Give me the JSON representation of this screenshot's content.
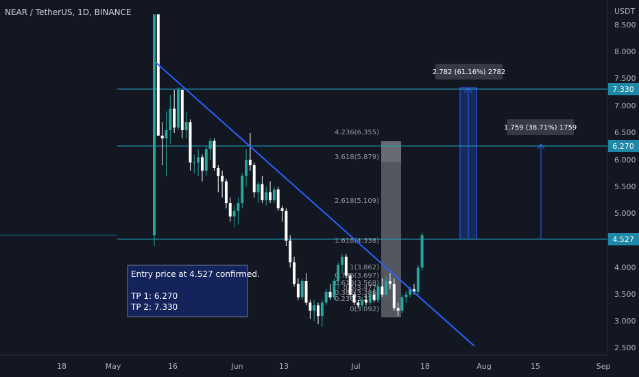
{
  "header": {
    "symbol_title": "NEAR / TetherUS, 1D, BINANCE"
  },
  "price_axis": {
    "unit_label": "USDT",
    "ticks": [
      "8.500",
      "8.000",
      "7.500",
      "7.000",
      "6.500",
      "6.000",
      "5.500",
      "5.000",
      "4.500",
      "4.000",
      "3.500",
      "3.000",
      "2.500"
    ]
  },
  "time_axis": {
    "ticks": [
      "18",
      "May",
      "16",
      "Jun",
      "13",
      "Jul",
      "18",
      "Aug",
      "15",
      "Sep"
    ]
  },
  "annotation": {
    "line1": "Entry price at 4.527 confirmed.",
    "line2": "TP 1: 6.270",
    "line3": "TP 2: 7.330"
  },
  "measure_labels": {
    "tp2": "2.782 (61.16%) 2782",
    "tp1": "1.759 (38.71%) 1759"
  },
  "level_badges": {
    "l7330": "7.330",
    "l6270": "6.270",
    "l4527": "4.527"
  },
  "fib_labels": {
    "f4236": "4.236(6.355)",
    "f3618": "3.618(5.879)",
    "f2618": "2.618(5.109)",
    "f1618": "1.618(4.338)",
    "f1": "1(3.862)",
    "f0786": "0.786(3.697)",
    "f0618": "0.618(3.568)",
    "f05": "0.5(3.477)",
    "f0382": "0.382(3.386)",
    "f0236": "0.236(3.274)",
    "f0": "0(3.092)"
  },
  "colors": {
    "background": "#131722",
    "up": "#26a69a",
    "down": "#ffffff",
    "level_line": "#22a6c4",
    "trendline": "#2962ff",
    "badge": "#1e88a8",
    "annotation_bg": "#14235a",
    "annotation_border": "#6b7a9a"
  },
  "chart_data": {
    "type": "candlestick",
    "title": "NEAR / TetherUS, 1D, BINANCE",
    "ylabel": "USDT",
    "ylim": [
      2.5,
      8.7
    ],
    "horizontal_levels": [
      7.33,
      6.27,
      4.527
    ],
    "candles": [
      {
        "o": 4.6,
        "h": 8.7,
        "l": 4.4,
        "c": 8.7
      },
      {
        "o": 8.7,
        "h": 8.7,
        "l": 6.45,
        "c": 6.45
      },
      {
        "o": 6.45,
        "h": 6.7,
        "l": 5.9,
        "c": 6.4
      },
      {
        "o": 6.4,
        "h": 6.9,
        "l": 5.7,
        "c": 6.55
      },
      {
        "o": 6.55,
        "h": 7.2,
        "l": 6.3,
        "c": 6.95
      },
      {
        "o": 6.95,
        "h": 7.3,
        "l": 6.5,
        "c": 6.6
      },
      {
        "o": 6.6,
        "h": 7.35,
        "l": 6.55,
        "c": 7.3
      },
      {
        "o": 7.3,
        "h": 7.3,
        "l": 6.4,
        "c": 6.55
      },
      {
        "o": 6.55,
        "h": 6.9,
        "l": 6.4,
        "c": 6.7
      },
      {
        "o": 6.7,
        "h": 6.75,
        "l": 5.8,
        "c": 5.95
      },
      {
        "o": 5.95,
        "h": 6.1,
        "l": 5.75,
        "c": 5.95
      },
      {
        "o": 5.95,
        "h": 6.2,
        "l": 5.7,
        "c": 6.05
      },
      {
        "o": 6.05,
        "h": 6.1,
        "l": 5.6,
        "c": 5.8
      },
      {
        "o": 5.8,
        "h": 6.25,
        "l": 5.7,
        "c": 6.2
      },
      {
        "o": 6.2,
        "h": 6.4,
        "l": 6.0,
        "c": 6.35
      },
      {
        "o": 6.35,
        "h": 6.4,
        "l": 5.8,
        "c": 5.85
      },
      {
        "o": 5.85,
        "h": 5.9,
        "l": 5.4,
        "c": 5.7
      },
      {
        "o": 5.7,
        "h": 5.8,
        "l": 5.3,
        "c": 5.6
      },
      {
        "o": 5.6,
        "h": 5.65,
        "l": 5.1,
        "c": 5.2
      },
      {
        "o": 5.2,
        "h": 5.3,
        "l": 4.85,
        "c": 4.95
      },
      {
        "o": 4.95,
        "h": 5.15,
        "l": 4.75,
        "c": 5.05
      },
      {
        "o": 5.05,
        "h": 5.3,
        "l": 4.8,
        "c": 5.2
      },
      {
        "o": 5.2,
        "h": 5.75,
        "l": 5.1,
        "c": 5.7
      },
      {
        "o": 5.7,
        "h": 6.2,
        "l": 5.5,
        "c": 6.0
      },
      {
        "o": 6.0,
        "h": 6.5,
        "l": 5.8,
        "c": 5.9
      },
      {
        "o": 5.9,
        "h": 5.95,
        "l": 5.3,
        "c": 5.4
      },
      {
        "o": 5.4,
        "h": 5.6,
        "l": 5.2,
        "c": 5.55
      },
      {
        "o": 5.55,
        "h": 5.7,
        "l": 5.2,
        "c": 5.25
      },
      {
        "o": 5.25,
        "h": 5.5,
        "l": 5.15,
        "c": 5.4
      },
      {
        "o": 5.4,
        "h": 5.6,
        "l": 5.2,
        "c": 5.25
      },
      {
        "o": 5.25,
        "h": 5.5,
        "l": 5.2,
        "c": 5.45
      },
      {
        "o": 5.45,
        "h": 5.5,
        "l": 5.05,
        "c": 5.1
      },
      {
        "o": 5.1,
        "h": 5.15,
        "l": 4.85,
        "c": 5.05
      },
      {
        "o": 5.05,
        "h": 5.1,
        "l": 4.4,
        "c": 4.5
      },
      {
        "o": 4.5,
        "h": 4.6,
        "l": 4.0,
        "c": 4.1
      },
      {
        "o": 4.1,
        "h": 4.2,
        "l": 3.65,
        "c": 3.7
      },
      {
        "o": 3.7,
        "h": 3.8,
        "l": 3.4,
        "c": 3.45
      },
      {
        "o": 3.45,
        "h": 3.8,
        "l": 3.4,
        "c": 3.75
      },
      {
        "o": 3.75,
        "h": 3.9,
        "l": 3.3,
        "c": 3.35
      },
      {
        "o": 3.35,
        "h": 3.4,
        "l": 3.05,
        "c": 3.2
      },
      {
        "o": 3.2,
        "h": 3.4,
        "l": 3.0,
        "c": 3.3
      },
      {
        "o": 3.3,
        "h": 3.35,
        "l": 2.95,
        "c": 3.1
      },
      {
        "o": 3.1,
        "h": 3.4,
        "l": 2.9,
        "c": 3.35
      },
      {
        "o": 3.35,
        "h": 3.6,
        "l": 3.3,
        "c": 3.55
      },
      {
        "o": 3.55,
        "h": 3.7,
        "l": 3.4,
        "c": 3.45
      },
      {
        "o": 3.45,
        "h": 3.8,
        "l": 3.4,
        "c": 3.75
      },
      {
        "o": 3.75,
        "h": 4.1,
        "l": 3.6,
        "c": 4.05
      },
      {
        "o": 4.05,
        "h": 4.25,
        "l": 3.9,
        "c": 4.2
      },
      {
        "o": 4.2,
        "h": 4.25,
        "l": 3.8,
        "c": 3.85
      },
      {
        "o": 3.85,
        "h": 3.9,
        "l": 3.45,
        "c": 3.5
      },
      {
        "o": 3.5,
        "h": 3.55,
        "l": 3.3,
        "c": 3.35
      },
      {
        "o": 3.35,
        "h": 3.4,
        "l": 3.25,
        "c": 3.3
      },
      {
        "o": 3.3,
        "h": 3.45,
        "l": 3.25,
        "c": 3.4
      },
      {
        "o": 3.4,
        "h": 3.5,
        "l": 3.3,
        "c": 3.35
      },
      {
        "o": 3.35,
        "h": 3.55,
        "l": 3.3,
        "c": 3.5
      },
      {
        "o": 3.5,
        "h": 3.6,
        "l": 3.35,
        "c": 3.4
      },
      {
        "o": 3.4,
        "h": 3.7,
        "l": 3.35,
        "c": 3.65
      },
      {
        "o": 3.65,
        "h": 3.8,
        "l": 3.45,
        "c": 3.5
      },
      {
        "o": 3.5,
        "h": 3.85,
        "l": 3.45,
        "c": 3.75
      },
      {
        "o": 3.75,
        "h": 3.9,
        "l": 3.6,
        "c": 3.7
      },
      {
        "o": 3.7,
        "h": 3.8,
        "l": 3.2,
        "c": 3.25
      },
      {
        "o": 3.25,
        "h": 3.35,
        "l": 3.1,
        "c": 3.2
      },
      {
        "o": 3.2,
        "h": 3.5,
        "l": 3.15,
        "c": 3.45
      },
      {
        "o": 3.45,
        "h": 3.55,
        "l": 3.35,
        "c": 3.5
      },
      {
        "o": 3.5,
        "h": 3.65,
        "l": 3.45,
        "c": 3.6
      },
      {
        "o": 3.6,
        "h": 3.7,
        "l": 3.5,
        "c": 3.55
      },
      {
        "o": 3.55,
        "h": 4.05,
        "l": 3.5,
        "c": 4.0
      },
      {
        "o": 4.0,
        "h": 4.65,
        "l": 3.95,
        "c": 4.6
      }
    ]
  }
}
